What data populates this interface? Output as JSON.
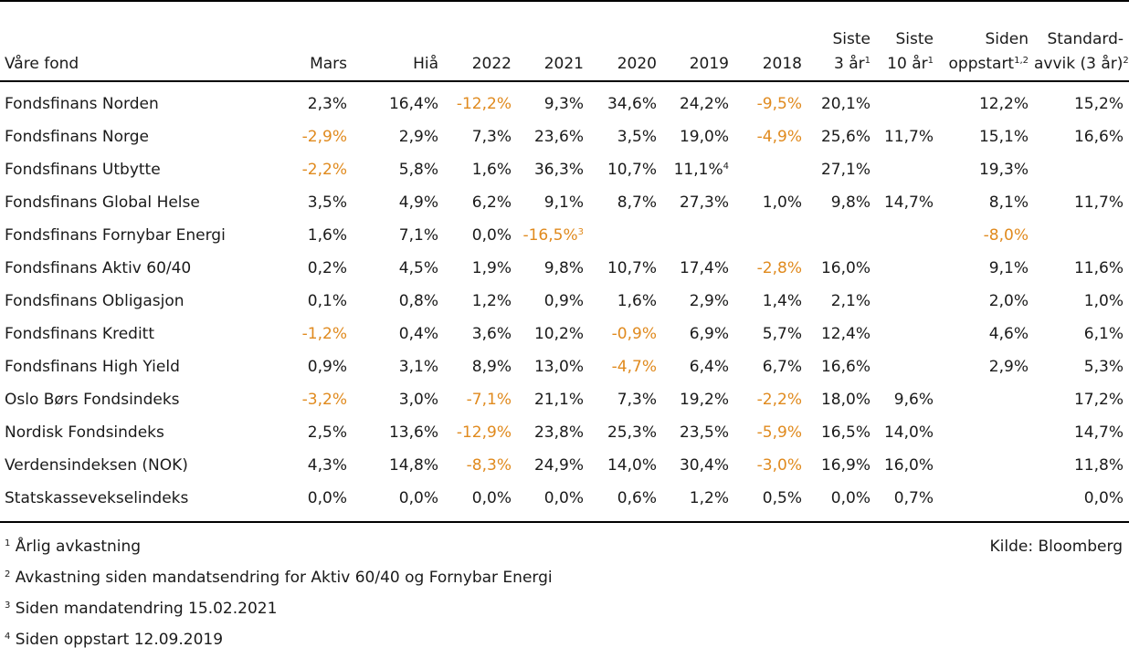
{
  "table": {
    "columns": [
      {
        "key": "name",
        "label": "Våre fond",
        "sup": ""
      },
      {
        "key": "mars",
        "label": "Mars",
        "sup": ""
      },
      {
        "key": "hia",
        "label": "Hiå",
        "sup": ""
      },
      {
        "key": "y2022",
        "label": "2022",
        "sup": ""
      },
      {
        "key": "y2021",
        "label": "2021",
        "sup": ""
      },
      {
        "key": "y2020",
        "label": "2020",
        "sup": ""
      },
      {
        "key": "y2019",
        "label": "2019",
        "sup": ""
      },
      {
        "key": "y2018",
        "label": "2018",
        "sup": ""
      },
      {
        "key": "s3",
        "line1": "Siste",
        "label": "3 år",
        "sup": "1"
      },
      {
        "key": "s10",
        "line1": "Siste",
        "label": "10 år",
        "sup": "1"
      },
      {
        "key": "since",
        "line1": "Siden",
        "label": "oppstart",
        "sup": "1,2"
      },
      {
        "key": "std",
        "line1": "Standard-",
        "label": "avvik (3 år)",
        "sup": "2"
      }
    ],
    "rows": [
      {
        "name": "Fondsfinans Norden",
        "cells": [
          {
            "v": "2,3%"
          },
          {
            "v": "16,4%"
          },
          {
            "v": "-12,2%",
            "neg": true
          },
          {
            "v": "9,3%"
          },
          {
            "v": "34,6%"
          },
          {
            "v": "24,2%"
          },
          {
            "v": "-9,5%",
            "neg": true
          },
          {
            "v": "20,1%"
          },
          {
            "v": ""
          },
          {
            "v": "12,2%"
          },
          {
            "v": "15,2%"
          }
        ]
      },
      {
        "name": "Fondsfinans Norge",
        "cells": [
          {
            "v": "-2,9%",
            "neg": true
          },
          {
            "v": "2,9%"
          },
          {
            "v": "7,3%"
          },
          {
            "v": "23,6%"
          },
          {
            "v": "3,5%"
          },
          {
            "v": "19,0%"
          },
          {
            "v": "-4,9%",
            "neg": true
          },
          {
            "v": "25,6%"
          },
          {
            "v": "11,7%"
          },
          {
            "v": "15,1%"
          },
          {
            "v": "16,6%"
          }
        ]
      },
      {
        "name": "Fondsfinans Utbytte",
        "cells": [
          {
            "v": "-2,2%",
            "neg": true
          },
          {
            "v": "5,8%"
          },
          {
            "v": "1,6%"
          },
          {
            "v": "36,3%"
          },
          {
            "v": "10,7%"
          },
          {
            "v": "11,1%",
            "sup": "4"
          },
          {
            "v": ""
          },
          {
            "v": "27,1%"
          },
          {
            "v": ""
          },
          {
            "v": "19,3%"
          },
          {
            "v": ""
          }
        ]
      },
      {
        "name": "Fondsfinans Global Helse",
        "cells": [
          {
            "v": "3,5%"
          },
          {
            "v": "4,9%"
          },
          {
            "v": "6,2%"
          },
          {
            "v": "9,1%"
          },
          {
            "v": "8,7%"
          },
          {
            "v": "27,3%"
          },
          {
            "v": "1,0%"
          },
          {
            "v": "9,8%"
          },
          {
            "v": "14,7%"
          },
          {
            "v": "8,1%"
          },
          {
            "v": "11,7%"
          }
        ]
      },
      {
        "name": "Fondsfinans Fornybar Energi",
        "cells": [
          {
            "v": "1,6%"
          },
          {
            "v": "7,1%"
          },
          {
            "v": "0,0%"
          },
          {
            "v": "-16,5%",
            "neg": true,
            "sup": "3"
          },
          {
            "v": ""
          },
          {
            "v": ""
          },
          {
            "v": ""
          },
          {
            "v": ""
          },
          {
            "v": ""
          },
          {
            "v": "-8,0%",
            "neg": true
          },
          {
            "v": ""
          }
        ]
      },
      {
        "name": "Fondsfinans Aktiv 60/40",
        "cells": [
          {
            "v": "0,2%"
          },
          {
            "v": "4,5%"
          },
          {
            "v": "1,9%"
          },
          {
            "v": "9,8%"
          },
          {
            "v": "10,7%"
          },
          {
            "v": "17,4%"
          },
          {
            "v": "-2,8%",
            "neg": true
          },
          {
            "v": "16,0%"
          },
          {
            "v": ""
          },
          {
            "v": "9,1%"
          },
          {
            "v": "11,6%"
          }
        ]
      },
      {
        "name": "Fondsfinans Obligasjon",
        "cells": [
          {
            "v": "0,1%"
          },
          {
            "v": "0,8%"
          },
          {
            "v": "1,2%"
          },
          {
            "v": "0,9%"
          },
          {
            "v": "1,6%"
          },
          {
            "v": "2,9%"
          },
          {
            "v": "1,4%"
          },
          {
            "v": "2,1%"
          },
          {
            "v": ""
          },
          {
            "v": "2,0%"
          },
          {
            "v": "1,0%"
          }
        ]
      },
      {
        "name": "Fondsfinans Kreditt",
        "cells": [
          {
            "v": "-1,2%",
            "neg": true
          },
          {
            "v": "0,4%"
          },
          {
            "v": "3,6%"
          },
          {
            "v": "10,2%"
          },
          {
            "v": "-0,9%",
            "neg": true
          },
          {
            "v": "6,9%"
          },
          {
            "v": "5,7%"
          },
          {
            "v": "12,4%"
          },
          {
            "v": ""
          },
          {
            "v": "4,6%"
          },
          {
            "v": "6,1%"
          }
        ]
      },
      {
        "name": "Fondsfinans High Yield",
        "cells": [
          {
            "v": "0,9%"
          },
          {
            "v": "3,1%"
          },
          {
            "v": "8,9%"
          },
          {
            "v": "13,0%"
          },
          {
            "v": "-4,7%",
            "neg": true
          },
          {
            "v": "6,4%"
          },
          {
            "v": "6,7%"
          },
          {
            "v": "16,6%"
          },
          {
            "v": ""
          },
          {
            "v": "2,9%"
          },
          {
            "v": "5,3%"
          }
        ]
      },
      {
        "name": "Oslo Børs Fondsindeks",
        "cells": [
          {
            "v": "-3,2%",
            "neg": true
          },
          {
            "v": "3,0%"
          },
          {
            "v": "-7,1%",
            "neg": true
          },
          {
            "v": "21,1%"
          },
          {
            "v": "7,3%"
          },
          {
            "v": "19,2%"
          },
          {
            "v": "-2,2%",
            "neg": true
          },
          {
            "v": "18,0%"
          },
          {
            "v": "9,6%"
          },
          {
            "v": ""
          },
          {
            "v": "17,2%"
          }
        ]
      },
      {
        "name": "Nordisk Fondsindeks",
        "cells": [
          {
            "v": "2,5%"
          },
          {
            "v": "13,6%"
          },
          {
            "v": "-12,9%",
            "neg": true
          },
          {
            "v": "23,8%"
          },
          {
            "v": "25,3%"
          },
          {
            "v": "23,5%"
          },
          {
            "v": "-5,9%",
            "neg": true
          },
          {
            "v": "16,5%"
          },
          {
            "v": "14,0%"
          },
          {
            "v": ""
          },
          {
            "v": "14,7%"
          }
        ]
      },
      {
        "name": "Verdensindeksen (NOK)",
        "cells": [
          {
            "v": "4,3%"
          },
          {
            "v": "14,8%"
          },
          {
            "v": "-8,3%",
            "neg": true
          },
          {
            "v": "24,9%"
          },
          {
            "v": "14,0%"
          },
          {
            "v": "30,4%"
          },
          {
            "v": "-3,0%",
            "neg": true
          },
          {
            "v": "16,9%"
          },
          {
            "v": "16,0%"
          },
          {
            "v": ""
          },
          {
            "v": "11,8%"
          }
        ]
      },
      {
        "name": "Statskassevekselindeks",
        "cells": [
          {
            "v": "0,0%"
          },
          {
            "v": "0,0%"
          },
          {
            "v": "0,0%"
          },
          {
            "v": "0,0%"
          },
          {
            "v": "0,6%"
          },
          {
            "v": "1,2%"
          },
          {
            "v": "0,5%"
          },
          {
            "v": "0,0%"
          },
          {
            "v": "0,7%"
          },
          {
            "v": ""
          },
          {
            "v": "0,0%"
          }
        ]
      }
    ]
  },
  "footnotes": [
    {
      "num": "1",
      "text": "Årlig avkastning"
    },
    {
      "num": "2",
      "text": "Avkastning siden mandatsendring for Aktiv 60/40 og Fornybar Energi"
    },
    {
      "num": "3",
      "text": "Siden mandatendring 15.02.2021"
    },
    {
      "num": "4",
      "text": "Siden oppstart 12.09.2019"
    }
  ],
  "source": "Kilde: Bloomberg",
  "colors": {
    "negative": "#e08a1e",
    "text": "#1a1a1a",
    "rule": "#000000"
  }
}
